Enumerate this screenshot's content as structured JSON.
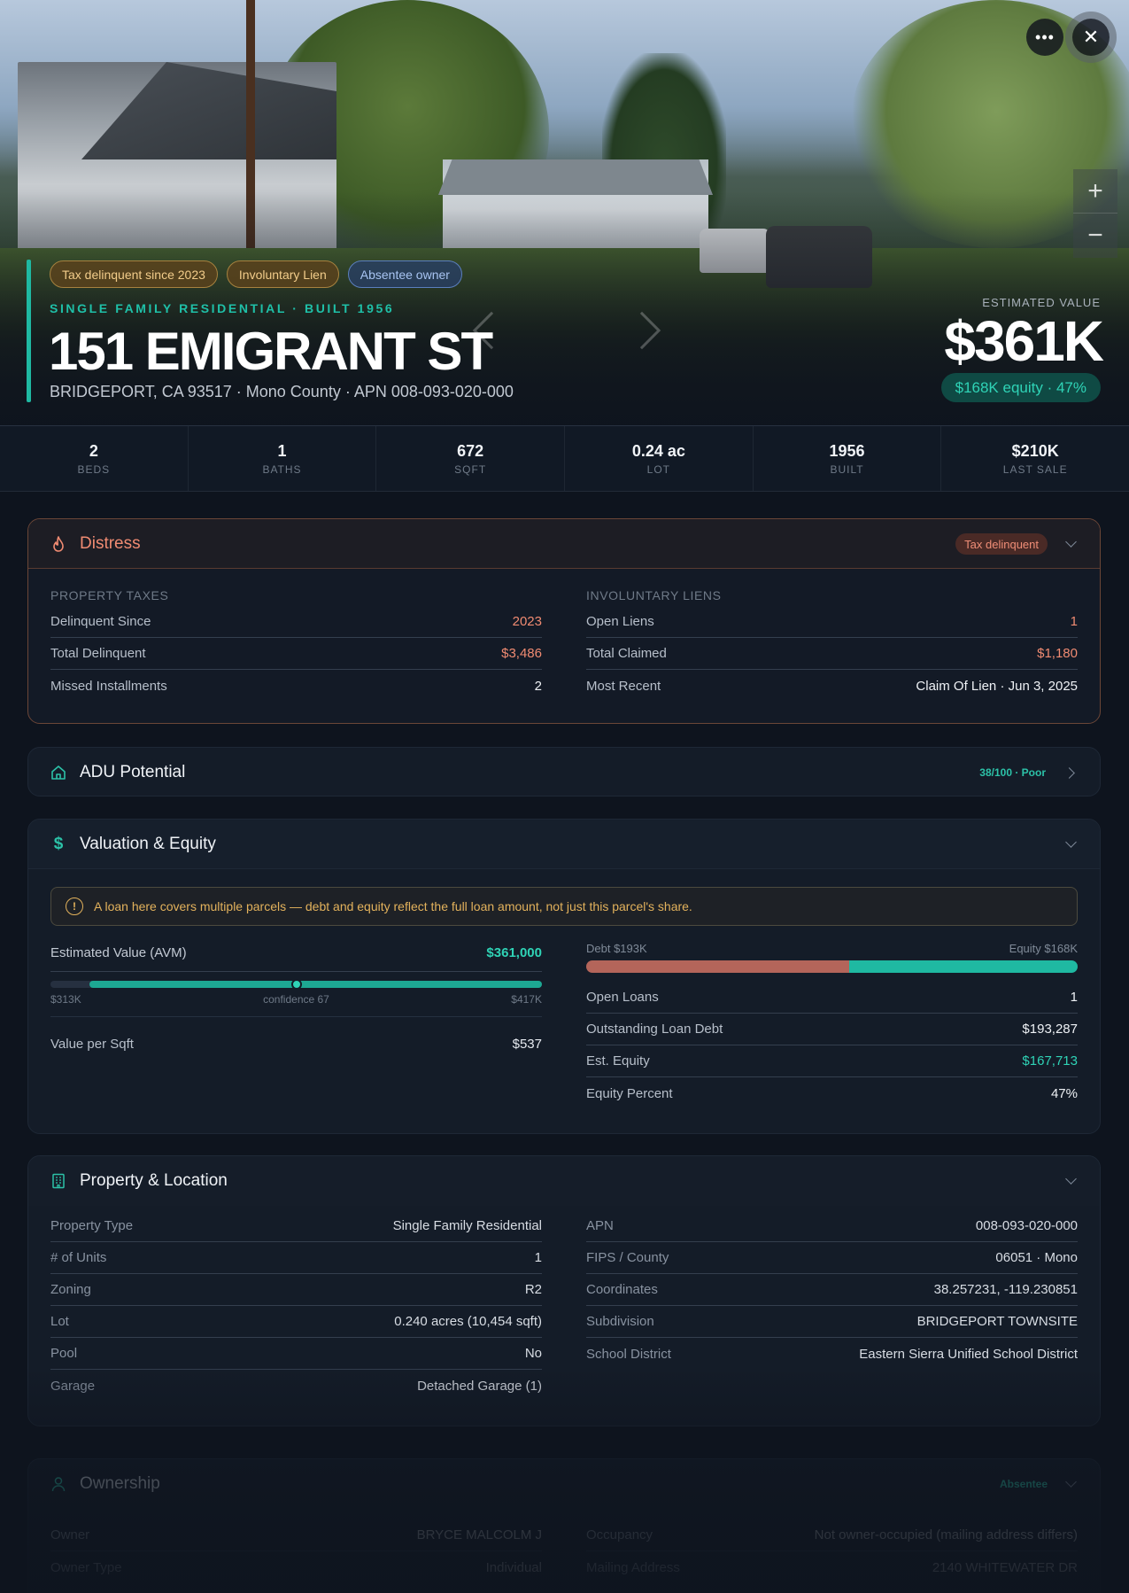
{
  "hero": {
    "tags": [
      "Tax delinquent since 2023",
      "Involuntary Lien",
      "Absentee owner"
    ],
    "subtitle": "SINGLE FAMILY RESIDENTIAL · BUILT 1956",
    "title": "151 EMIGRANT ST",
    "address": "BRIDGEPORT, CA 93517 · Mono County · APN 008-093-020-000",
    "estimate_label": "ESTIMATED VALUE",
    "estimate_value": "$361K",
    "equity_pill": "$168K equity · 47%",
    "more_icon": "ellipsis-icon",
    "close_icon": "close-icon",
    "zoom_in": "+",
    "zoom_out": "−"
  },
  "stats": [
    {
      "value": "2",
      "label": "BEDS"
    },
    {
      "value": "1",
      "label": "BATHS"
    },
    {
      "value": "672",
      "label": "SQFT"
    },
    {
      "value": "0.24 ac",
      "label": "LOT"
    },
    {
      "value": "1956",
      "label": "BUILT"
    },
    {
      "value": "$210K",
      "label": "LAST SALE"
    }
  ],
  "distress": {
    "title": "Distress",
    "icon": "flame-icon",
    "badge": "Tax delinquent",
    "left": {
      "label": "PROPERTY TAXES",
      "rows": [
        {
          "k": "Delinquent Since",
          "v": "2023"
        },
        {
          "k": "Total Delinquent",
          "v": "$3,486"
        },
        {
          "k": "Missed Installments",
          "v": "2"
        }
      ]
    },
    "right": {
      "label": "INVOLUNTARY LIENS",
      "rows": [
        {
          "k": "Open Liens",
          "v": "1"
        },
        {
          "k": "Total Claimed",
          "v": "$1,180"
        },
        {
          "k": "Most Recent",
          "v": "Claim Of Lien · Jun 3, 2025"
        }
      ]
    }
  },
  "adu": {
    "title": "ADU Potential",
    "icon": "home-icon",
    "score": "38/100 · Poor"
  },
  "valuation": {
    "title": "Valuation & Equity",
    "icon": "dollar-icon",
    "notice": "A loan here covers multiple parcels — debt and equity reflect the full loan amount, not just this parcel's share.",
    "avm_label": "Estimated Value (AVM)",
    "avm_value": "$361,000",
    "range_low": "$313K",
    "range_mid": "confidence 67",
    "range_high": "$417K",
    "avm_position": 0.5,
    "vps_label": "Value per Sqft",
    "vps_value": "$537",
    "debt_label": "Debt $193K",
    "equity_label": "Equity $168K",
    "debt_fraction": 0.535,
    "rows": [
      {
        "k": "Open Loans",
        "v": "1"
      },
      {
        "k": "Outstanding Loan Debt",
        "v": "$193,287"
      },
      {
        "k": "Est. Equity",
        "v": "$167,713"
      },
      {
        "k": "Equity Percent",
        "v": "47%"
      }
    ]
  },
  "property": {
    "title": "Property & Location",
    "icon": "building-icon",
    "left": [
      {
        "k": "Property Type",
        "v": "Single Family Residential"
      },
      {
        "k": "# of Units",
        "v": "1"
      },
      {
        "k": "Zoning",
        "v": "R2"
      },
      {
        "k": "Lot",
        "v": "0.240 acres (10,454 sqft)"
      },
      {
        "k": "Pool",
        "v": "No"
      },
      {
        "k": "Garage",
        "v": "Detached Garage (1)"
      }
    ],
    "right": [
      {
        "k": "APN",
        "v": "008-093-020-000"
      },
      {
        "k": "FIPS / County",
        "v": "06051 · Mono"
      },
      {
        "k": "Coordinates",
        "v": "38.257231, -119.230851"
      },
      {
        "k": "Subdivision",
        "v": "BRIDGEPORT TOWNSITE"
      },
      {
        "k": "School District",
        "v": "Eastern Sierra Unified School District"
      }
    ]
  },
  "ownership": {
    "title": "Ownership",
    "icon": "person-icon",
    "badge": "Absentee",
    "left": [
      {
        "k": "Owner",
        "v": "BRYCE MALCOLM J"
      },
      {
        "k": "Owner Type",
        "v": "Individual"
      }
    ],
    "right": [
      {
        "k": "Occupancy",
        "v": "Not owner-occupied (mailing address differs)"
      },
      {
        "k": "Mailing Address",
        "v": "2140 WHITEWATER DR"
      }
    ]
  },
  "colors": {
    "accent": "#1fb9a2",
    "distress": "#f08b72",
    "debt": "#b4655a",
    "background": "#0e141e"
  }
}
